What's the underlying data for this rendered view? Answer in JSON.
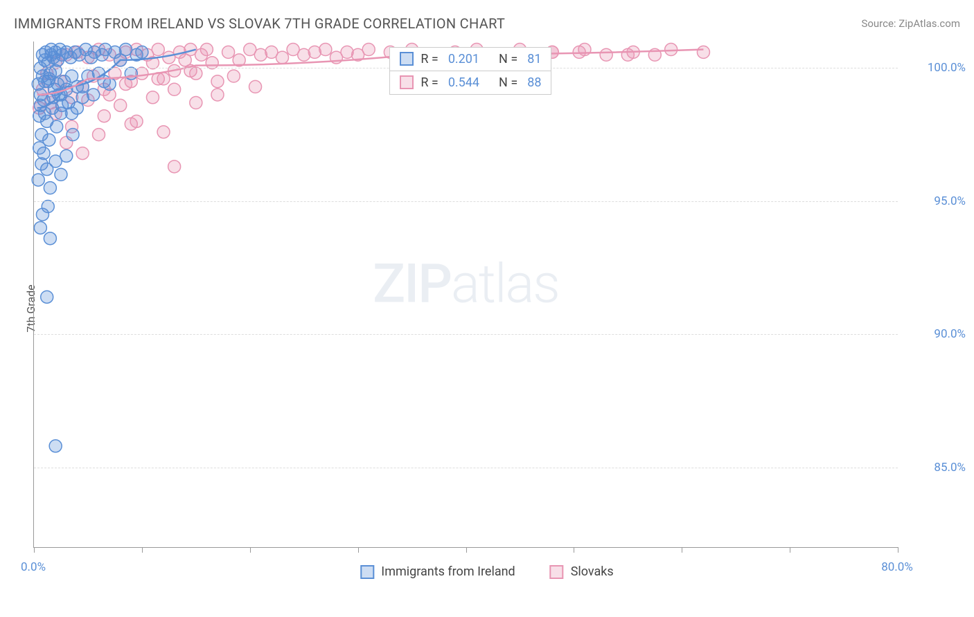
{
  "header": {
    "title": "IMMIGRANTS FROM IRELAND VS SLOVAK 7TH GRADE CORRELATION CHART",
    "source_prefix": "Source: ",
    "source": "ZipAtlas.com"
  },
  "watermark": {
    "zip": "ZIP",
    "atlas": "atlas"
  },
  "chart": {
    "type": "scatter",
    "y_axis_label": "7th Grade",
    "x_range": [
      0,
      80
    ],
    "y_range": [
      82,
      101
    ],
    "x_ticks": [
      0,
      10,
      20,
      30,
      40,
      50,
      60,
      70,
      80
    ],
    "x_tick_labels": {
      "0": "0.0%",
      "80": "80.0%"
    },
    "y_ticks": [
      85,
      90,
      95,
      100
    ],
    "y_tick_labels": {
      "85": "85.0%",
      "90": "90.0%",
      "95": "95.0%",
      "100": "100.0%"
    },
    "marker_radius": 9,
    "marker_fill_opacity": 0.3,
    "marker_stroke_width": 1.5,
    "trend_line_width": 2.5,
    "background_color": "#ffffff",
    "grid_color": "#dddddd",
    "axis_color": "#999999",
    "tick_label_color": "#5a8fd6",
    "tick_label_fontsize": 17
  },
  "series": {
    "ireland": {
      "label": "Immigrants from Ireland",
      "color": "#5a8fd6",
      "fill": "rgba(90,143,214,0.30)",
      "R": "0.201",
      "N": "81",
      "trend": [
        [
          0.3,
          98.5
        ],
        [
          3.0,
          99.3
        ],
        [
          8.0,
          100.3
        ],
        [
          15.0,
          100.7
        ]
      ],
      "points": [
        [
          0.4,
          95.8
        ],
        [
          0.5,
          98.2
        ],
        [
          0.6,
          99.0
        ],
        [
          0.7,
          97.5
        ],
        [
          0.8,
          100.5
        ],
        [
          0.9,
          98.8
        ],
        [
          1.0,
          99.5
        ],
        [
          1.1,
          100.6
        ],
        [
          1.2,
          98.0
        ],
        [
          1.3,
          100.2
        ],
        [
          1.4,
          97.3
        ],
        [
          1.5,
          99.8
        ],
        [
          1.6,
          100.7
        ],
        [
          1.7,
          98.5
        ],
        [
          1.8,
          100.4
        ],
        [
          1.9,
          99.2
        ],
        [
          2.0,
          100.6
        ],
        [
          2.1,
          97.8
        ],
        [
          2.2,
          100.3
        ],
        [
          2.3,
          99.0
        ],
        [
          2.4,
          100.7
        ],
        [
          2.5,
          98.3
        ],
        [
          2.6,
          100.5
        ],
        [
          2.8,
          99.5
        ],
        [
          3.0,
          100.6
        ],
        [
          3.2,
          98.7
        ],
        [
          3.4,
          100.4
        ],
        [
          3.6,
          97.5
        ],
        [
          3.8,
          100.6
        ],
        [
          4.0,
          99.3
        ],
        [
          4.2,
          100.5
        ],
        [
          4.5,
          98.9
        ],
        [
          4.8,
          100.7
        ],
        [
          5.0,
          99.7
        ],
        [
          5.3,
          100.4
        ],
        [
          5.6,
          100.6
        ],
        [
          6.0,
          99.8
        ],
        [
          6.3,
          100.5
        ],
        [
          6.6,
          100.7
        ],
        [
          7.0,
          99.4
        ],
        [
          7.5,
          100.6
        ],
        [
          8.0,
          100.3
        ],
        [
          8.5,
          100.7
        ],
        [
          9.0,
          99.8
        ],
        [
          9.5,
          100.5
        ],
        [
          10.0,
          100.6
        ],
        [
          0.5,
          97.0
        ],
        [
          0.7,
          96.4
        ],
        [
          0.9,
          96.8
        ],
        [
          1.2,
          96.2
        ],
        [
          1.5,
          95.5
        ],
        [
          2.0,
          96.5
        ],
        [
          2.5,
          96.0
        ],
        [
          3.0,
          96.7
        ],
        [
          0.6,
          98.6
        ],
        [
          1.0,
          98.3
        ],
        [
          1.4,
          99.6
        ],
        [
          1.8,
          98.9
        ],
        [
          2.2,
          99.4
        ],
        [
          2.6,
          98.6
        ],
        [
          3.0,
          99.2
        ],
        [
          3.5,
          99.7
        ],
        [
          4.0,
          98.5
        ],
        [
          0.4,
          99.4
        ],
        [
          0.6,
          100.0
        ],
        [
          0.8,
          99.7
        ],
        [
          1.0,
          100.3
        ],
        [
          1.3,
          99.5
        ],
        [
          1.6,
          100.5
        ],
        [
          2.0,
          99.9
        ],
        [
          0.8,
          94.5
        ],
        [
          1.3,
          94.8
        ],
        [
          0.6,
          94.0
        ],
        [
          1.5,
          93.6
        ],
        [
          2.5,
          99.0
        ],
        [
          3.5,
          98.3
        ],
        [
          4.5,
          99.3
        ],
        [
          5.5,
          99.0
        ],
        [
          6.5,
          99.5
        ],
        [
          1.2,
          91.4
        ],
        [
          2.0,
          85.8
        ]
      ]
    },
    "slovaks": {
      "label": "Slovaks",
      "color": "#e895b3",
      "fill": "rgba(232,149,179,0.30)",
      "R": "0.544",
      "N": "88",
      "trend": [
        [
          0.3,
          99.0
        ],
        [
          5.0,
          99.6
        ],
        [
          15.0,
          100.1
        ],
        [
          35.0,
          100.5
        ],
        [
          62.0,
          100.7
        ]
      ],
      "points": [
        [
          0.5,
          98.5
        ],
        [
          0.8,
          99.2
        ],
        [
          1.2,
          99.8
        ],
        [
          1.6,
          98.7
        ],
        [
          2.0,
          100.2
        ],
        [
          2.5,
          99.5
        ],
        [
          3.0,
          100.5
        ],
        [
          3.5,
          98.9
        ],
        [
          4.0,
          100.6
        ],
        [
          4.5,
          99.3
        ],
        [
          5.0,
          100.4
        ],
        [
          5.5,
          99.7
        ],
        [
          6.0,
          100.7
        ],
        [
          6.5,
          99.2
        ],
        [
          7.0,
          100.5
        ],
        [
          7.5,
          99.8
        ],
        [
          8.0,
          100.3
        ],
        [
          8.5,
          100.6
        ],
        [
          9.0,
          99.5
        ],
        [
          9.5,
          100.7
        ],
        [
          10.0,
          99.8
        ],
        [
          10.5,
          100.5
        ],
        [
          11.0,
          100.2
        ],
        [
          11.5,
          100.7
        ],
        [
          12.0,
          99.6
        ],
        [
          12.5,
          100.4
        ],
        [
          13.0,
          99.9
        ],
        [
          13.5,
          100.6
        ],
        [
          14.0,
          100.3
        ],
        [
          14.5,
          100.7
        ],
        [
          15.0,
          99.8
        ],
        [
          15.5,
          100.5
        ],
        [
          16.0,
          100.7
        ],
        [
          17.0,
          99.5
        ],
        [
          18.0,
          100.6
        ],
        [
          19.0,
          100.3
        ],
        [
          20.0,
          100.7
        ],
        [
          21.0,
          100.5
        ],
        [
          22.0,
          100.6
        ],
        [
          23.0,
          100.4
        ],
        [
          24.0,
          100.7
        ],
        [
          25.0,
          100.5
        ],
        [
          26.0,
          100.6
        ],
        [
          27.0,
          100.7
        ],
        [
          28.0,
          100.4
        ],
        [
          29.0,
          100.6
        ],
        [
          30.0,
          100.5
        ],
        [
          31.0,
          100.7
        ],
        [
          33.0,
          100.6
        ],
        [
          35.0,
          100.7
        ],
        [
          37.0,
          100.5
        ],
        [
          39.0,
          100.6
        ],
        [
          41.0,
          100.7
        ],
        [
          43.0,
          100.5
        ],
        [
          45.0,
          100.7
        ],
        [
          48.0,
          100.6
        ],
        [
          51.0,
          100.7
        ],
        [
          55.0,
          100.5
        ],
        [
          59.0,
          100.7
        ],
        [
          62.0,
          100.6
        ],
        [
          2.0,
          98.3
        ],
        [
          3.5,
          97.8
        ],
        [
          5.0,
          98.8
        ],
        [
          6.5,
          98.2
        ],
        [
          8.0,
          98.6
        ],
        [
          9.5,
          98.0
        ],
        [
          11.0,
          98.9
        ],
        [
          13.0,
          99.2
        ],
        [
          15.0,
          98.7
        ],
        [
          17.0,
          99.0
        ],
        [
          3.0,
          97.2
        ],
        [
          6.0,
          97.5
        ],
        [
          9.0,
          97.9
        ],
        [
          12.0,
          97.6
        ],
        [
          4.5,
          96.8
        ],
        [
          8.5,
          99.4
        ],
        [
          11.5,
          99.6
        ],
        [
          14.5,
          99.9
        ],
        [
          16.5,
          100.2
        ],
        [
          18.5,
          99.7
        ],
        [
          13.0,
          96.3
        ],
        [
          20.5,
          99.3
        ],
        [
          7.0,
          99.0
        ],
        [
          48.0,
          100.6
        ],
        [
          50.5,
          100.6
        ],
        [
          53.0,
          100.5
        ],
        [
          55.5,
          100.6
        ],
        [
          57.5,
          100.5
        ]
      ]
    }
  },
  "legend": {
    "r_label": "R  =",
    "n_label": "N  ="
  },
  "bottom_legend": {
    "ireland": "Immigrants from Ireland",
    "slovaks": "Slovaks"
  }
}
